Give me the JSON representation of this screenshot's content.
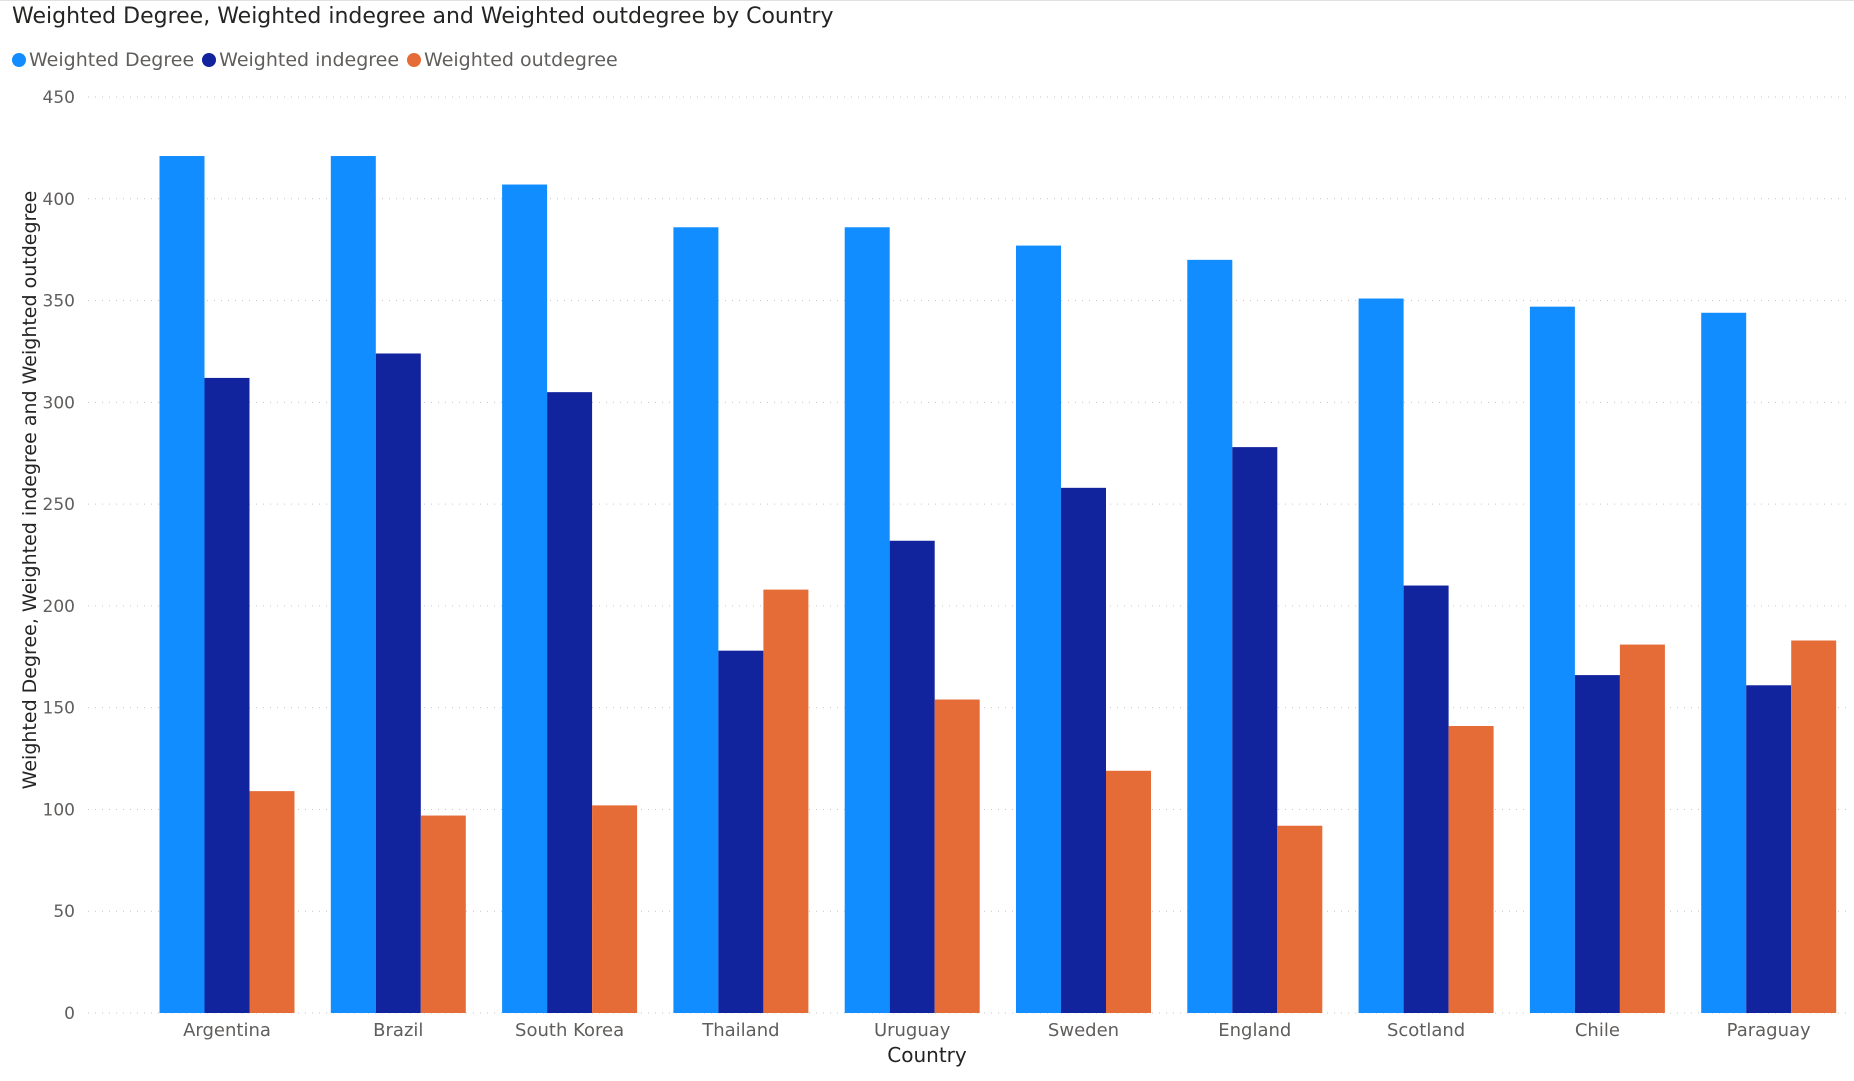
{
  "chart_data": {
    "type": "bar",
    "title": "Weighted Degree, Weighted indegree and Weighted outdegree by Country",
    "xlabel": "Country",
    "ylabel": "Weighted Degree, Weighted indegree and Weighted outdegree",
    "ylim": [
      0,
      450
    ],
    "yticks": [
      0,
      50,
      100,
      150,
      200,
      250,
      300,
      350,
      400,
      450
    ],
    "grid": true,
    "legend_position": "top-left",
    "categories": [
      "Argentina",
      "Brazil",
      "South Korea",
      "Thailand",
      "Uruguay",
      "Sweden",
      "England",
      "Scotland",
      "Chile",
      "Paraguay"
    ],
    "series": [
      {
        "name": "Weighted Degree",
        "color": "#118dff",
        "values": [
          421,
          421,
          407,
          386,
          386,
          377,
          370,
          351,
          347,
          344
        ]
      },
      {
        "name": "Weighted indegree",
        "color": "#12239e",
        "values": [
          312,
          324,
          305,
          178,
          232,
          258,
          278,
          210,
          166,
          161
        ]
      },
      {
        "name": "Weighted outdegree",
        "color": "#e66c37",
        "values": [
          109,
          97,
          102,
          208,
          154,
          119,
          92,
          141,
          181,
          183
        ]
      }
    ]
  }
}
